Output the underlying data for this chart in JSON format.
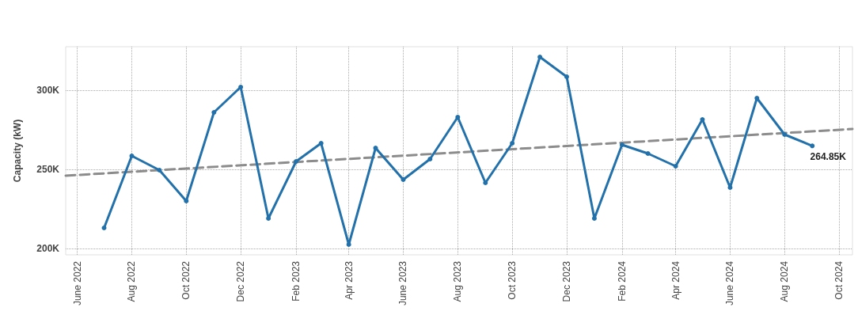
{
  "chart_data": {
    "type": "line",
    "ylabel": "Capacity (kW)",
    "x": [
      "2022-07",
      "2022-08",
      "2022-09",
      "2022-10",
      "2022-11",
      "2022-12",
      "2023-01",
      "2023-02",
      "2023-03",
      "2023-04",
      "2023-05",
      "2023-06",
      "2023-07",
      "2023-08",
      "2023-09",
      "2023-10",
      "2023-11",
      "2023-12",
      "2024-01",
      "2024-02",
      "2024-03",
      "2024-04",
      "2024-05",
      "2024-06",
      "2024-07",
      "2024-08",
      "2024-09"
    ],
    "series": [
      {
        "color": "#2271ab",
        "values": [
          213000,
          258500,
          249500,
          230000,
          286000,
          302000,
          219000,
          255000,
          266500,
          202500,
          263500,
          243500,
          256500,
          283000,
          241500,
          266500,
          321000,
          308500,
          219000,
          265500,
          260000,
          252000,
          281500,
          238500,
          295000,
          272000,
          264850
        ],
        "value_labels": [
          null,
          null,
          null,
          null,
          null,
          null,
          null,
          null,
          null,
          null,
          null,
          null,
          null,
          null,
          null,
          null,
          null,
          null,
          null,
          null,
          null,
          null,
          null,
          null,
          null,
          null,
          "264.85K"
        ],
        "marker": "circle",
        "line_style": "solid"
      },
      {
        "type": "line",
        "color": "#8c8c8c",
        "x": [
          "2022-05-19",
          "2024-10-16"
        ],
        "values": [
          246000,
          275500
        ],
        "marker": "none",
        "line_style": "dashed"
      }
    ],
    "xlim": [
      "2022-05-19",
      "2024-10-16"
    ],
    "xticks": [
      {
        "value": "2022-06",
        "label": "June 2022"
      },
      {
        "value": "2022-08",
        "label": "Aug 2022"
      },
      {
        "value": "2022-10",
        "label": "Oct 2022"
      },
      {
        "value": "2022-12",
        "label": "Dec 2022"
      },
      {
        "value": "2023-02",
        "label": "Feb 2023"
      },
      {
        "value": "2023-04",
        "label": "Apr 2023"
      },
      {
        "value": "2023-06",
        "label": "June 2023"
      },
      {
        "value": "2023-08",
        "label": "Aug 2023"
      },
      {
        "value": "2023-10",
        "label": "Oct 2023"
      },
      {
        "value": "2023-12",
        "label": "Dec 2023"
      },
      {
        "value": "2024-02",
        "label": "Feb 2024"
      },
      {
        "value": "2024-04",
        "label": "Apr 2024"
      },
      {
        "value": "2024-06",
        "label": "June 2024"
      },
      {
        "value": "2024-08",
        "label": "Aug 2024"
      },
      {
        "value": "2024-10",
        "label": "Oct 2024"
      }
    ],
    "ylim": [
      196000,
      327500
    ],
    "yticks": [
      {
        "value": 200000,
        "label": "200K"
      },
      {
        "value": 250000,
        "label": "250K"
      },
      {
        "value": 300000,
        "label": "300K"
      }
    ],
    "grid": true
  }
}
